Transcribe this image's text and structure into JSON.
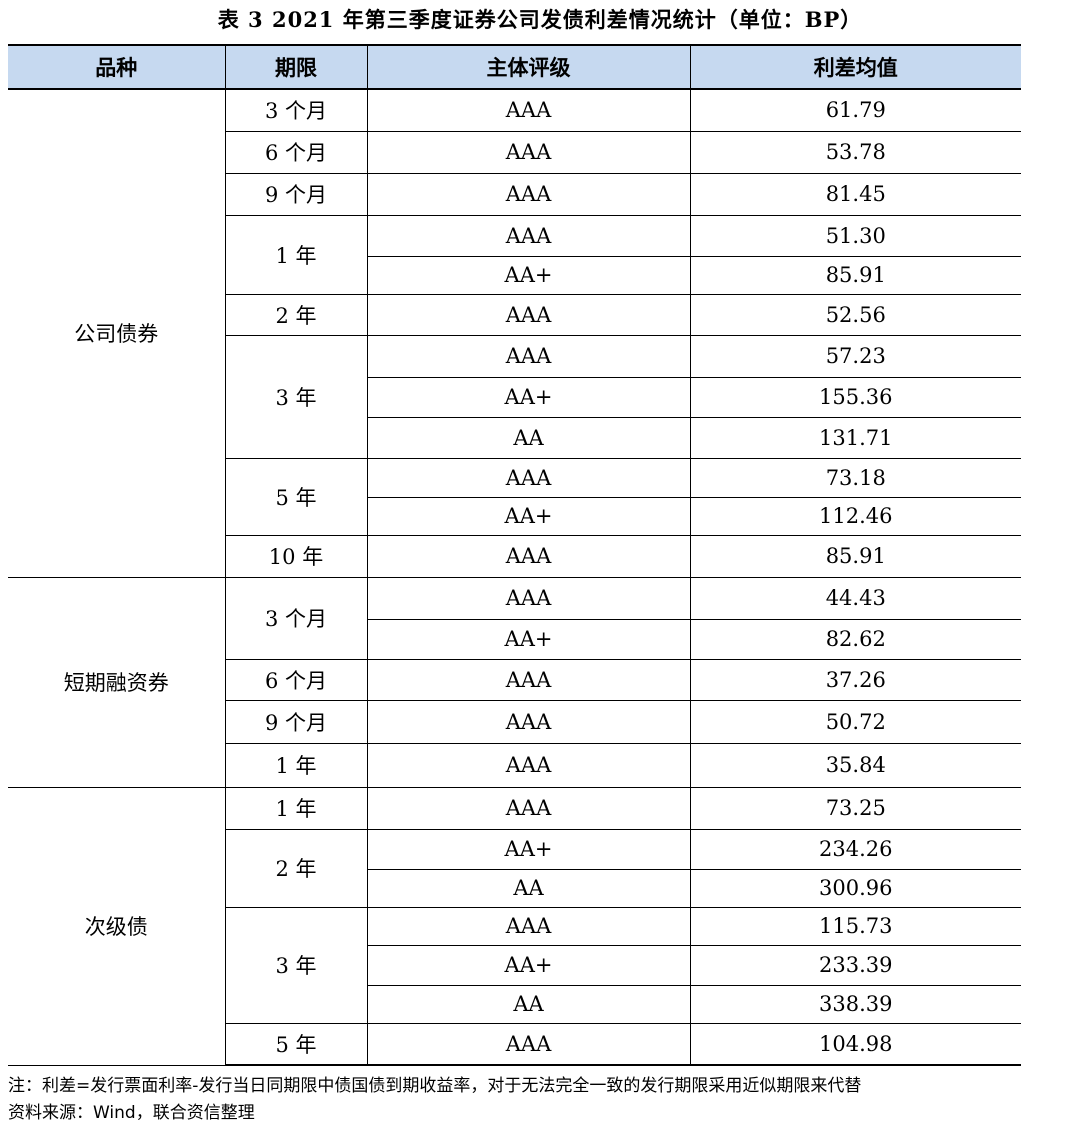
{
  "title": "表 3   2021 年第三季度证券公司发债利差情况统计（单位：BP）",
  "headers": [
    "品种",
    "期限",
    "主体评级",
    "利差均值"
  ],
  "header_bg": "#c6d9f0",
  "groups": [
    {
      "name": "公司债券",
      "terms": [
        {
          "term": "3 个月",
          "rows": [
            [
              "AAA",
              "61.79"
            ]
          ]
        },
        {
          "term": "6 个月",
          "rows": [
            [
              "AAA",
              "53.78"
            ]
          ]
        },
        {
          "term": "9 个月",
          "rows": [
            [
              "AAA",
              "81.45"
            ]
          ]
        },
        {
          "term": "1 年",
          "rows": [
            [
              "AAA",
              "51.30"
            ],
            [
              "AA+",
              "85.91"
            ]
          ]
        },
        {
          "term": "2 年",
          "rows": [
            [
              "AAA",
              "52.56"
            ]
          ]
        },
        {
          "term": "3 年",
          "rows": [
            [
              "AAA",
              "57.23"
            ],
            [
              "AA+",
              "155.36"
            ],
            [
              "AA",
              "131.71"
            ]
          ]
        },
        {
          "term": "5 年",
          "rows": [
            [
              "AAA",
              "73.18"
            ],
            [
              "AA+",
              "112.46"
            ]
          ]
        },
        {
          "term": "10 年",
          "rows": [
            [
              "AAA",
              "85.91"
            ]
          ]
        }
      ]
    },
    {
      "name": "短期融资券",
      "terms": [
        {
          "term": "3 个月",
          "rows": [
            [
              "AAA",
              "44.43"
            ],
            [
              "AA+",
              "82.62"
            ]
          ]
        },
        {
          "term": "6 个月",
          "rows": [
            [
              "AAA",
              "37.26"
            ]
          ]
        },
        {
          "term": "9 个月",
          "rows": [
            [
              "AAA",
              "50.72"
            ]
          ]
        },
        {
          "term": "1 年",
          "rows": [
            [
              "AAA",
              "35.84"
            ]
          ]
        }
      ]
    },
    {
      "name": "次级债",
      "terms": [
        {
          "term": "1 年",
          "rows": [
            [
              "AAA",
              "73.25"
            ]
          ]
        },
        {
          "term": "2 年",
          "rows": [
            [
              "AA+",
              "234.26"
            ],
            [
              "AA",
              "300.96"
            ]
          ]
        },
        {
          "term": "3 年",
          "rows": [
            [
              "AAA",
              "115.73"
            ],
            [
              "AA+",
              "233.39"
            ],
            [
              "AA",
              "338.39"
            ]
          ]
        },
        {
          "term": "5 年",
          "rows": [
            [
              "AAA",
              "104.98"
            ]
          ]
        }
      ]
    }
  ],
  "note": "注：利差=发行票面利率-发行当日同期限中债国债到期收益率，对于无法完全一致的发行期限采用近似期限来代替",
  "source": "资料来源：Wind，联合资信整理"
}
